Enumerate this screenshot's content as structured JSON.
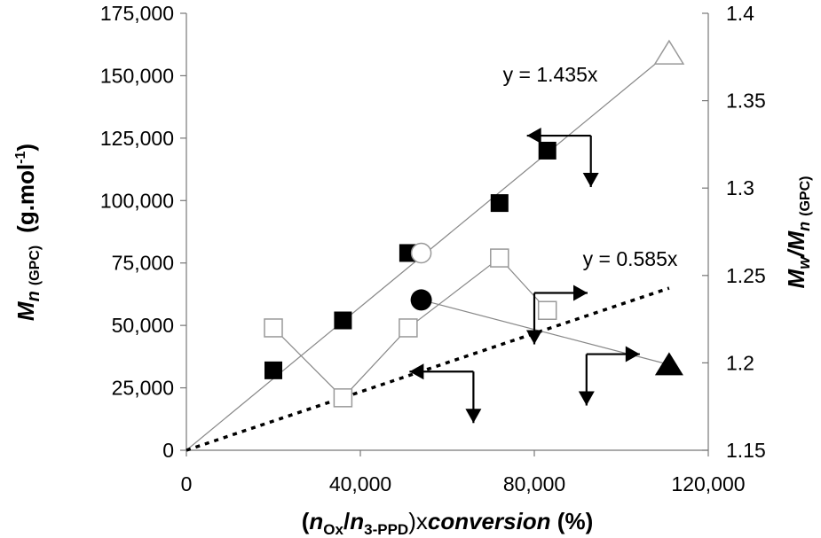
{
  "chart_data": {
    "type": "scatter",
    "x_axis": {
      "label_parts": {
        "open": "(",
        "n1": "n",
        "sub1": "Ox",
        "slash": "/",
        "n2": "n",
        "sub2": "3-PPD",
        "close": ")x",
        "word": "conversion",
        "unit": " (%)"
      },
      "ticks": [
        "0",
        "40,000",
        "80,000",
        "120,000"
      ],
      "range": [
        0,
        120000
      ]
    },
    "y_left_axis": {
      "label_parts": {
        "m": "M",
        "n": "n",
        "sub": "(GPC)",
        "unit": "(g.mol",
        "sup": "-1",
        "close": ")"
      },
      "ticks": [
        "0",
        "25,000",
        "50,000",
        "75,000",
        "100,000",
        "125,000",
        "150,000",
        "175,000"
      ],
      "range": [
        0,
        175000
      ]
    },
    "y_right_axis": {
      "label_parts": {
        "mw": "M",
        "w": "w",
        "slash": "/M",
        "n": "n",
        "sub": "(GPC)"
      },
      "ticks": [
        "1.15",
        "1.2",
        "1.25",
        "1.3",
        "1.35",
        "1.4"
      ],
      "range": [
        1.15,
        1.4
      ]
    },
    "series": [
      {
        "marker": "filled-square",
        "axis": "left",
        "x": [
          20000,
          36000,
          51000,
          72000,
          83000
        ],
        "y": [
          32000,
          52000,
          79000,
          99000,
          120000
        ]
      },
      {
        "marker": "open-circle",
        "axis": "left",
        "x": [
          54000
        ],
        "y": [
          79000
        ]
      },
      {
        "marker": "open-triangle",
        "axis": "left",
        "x": [
          111000
        ],
        "y": [
          159000
        ]
      },
      {
        "marker": "open-square",
        "axis": "right",
        "connected": true,
        "x": [
          20000,
          36000,
          51000,
          72000,
          83000
        ],
        "y": [
          1.22,
          1.18,
          1.22,
          1.26,
          1.23
        ]
      },
      {
        "marker": "filled-circle",
        "axis": "right",
        "x": [
          54000
        ],
        "y": [
          1.236
        ]
      },
      {
        "marker": "filled-triangle",
        "axis": "right",
        "x": [
          111000
        ],
        "y": [
          1.199
        ]
      }
    ],
    "connector_lines": [
      {
        "axis": "right",
        "x": [
          54000,
          111000
        ],
        "y": [
          1.236,
          1.199
        ]
      }
    ],
    "trendlines": [
      {
        "label": "y = 1.435x",
        "slope": 1.435,
        "x_range": [
          0,
          111000
        ],
        "style": "solid-thin",
        "axis": "left"
      },
      {
        "label": "y = 0.585x",
        "slope": 0.585,
        "x_range": [
          0,
          111000
        ],
        "style": "dotted-bold",
        "axis": "left"
      }
    ],
    "axis_pointers": [
      {
        "at": [
          93000,
          1.33
        ],
        "axis": "right",
        "points_to": "left"
      },
      {
        "at": [
          66000,
          1.195
        ],
        "axis": "right",
        "points_to": "left"
      },
      {
        "at": [
          80000,
          1.24
        ],
        "axis": "right",
        "points_to": "right"
      },
      {
        "at": [
          92000,
          1.205
        ],
        "axis": "right",
        "points_to": "right"
      }
    ],
    "grid": false,
    "legend": "none"
  }
}
